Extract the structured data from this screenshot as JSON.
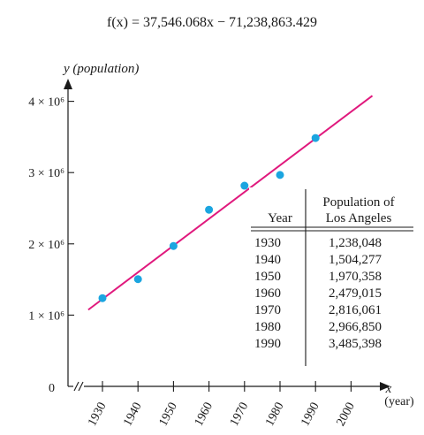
{
  "chart_data": {
    "type": "scatter",
    "title": "f(x) = 37,546.068x − 71,238,863.429",
    "ylabel": "y (population)",
    "xlabel_var": "x",
    "xlabel_unit": "(year)",
    "xlim": [
      1920,
      2010
    ],
    "ylim": [
      0,
      4000000
    ],
    "x_ticks": [
      1930,
      1940,
      1950,
      1960,
      1970,
      1980,
      1990,
      2000
    ],
    "x_tick_labels": [
      "1930",
      "1940",
      "1950",
      "1960",
      "1970",
      "1980",
      "1990",
      "2000"
    ],
    "y_ticks": [
      1000000,
      2000000,
      3000000,
      4000000
    ],
    "y_tick_labels": [
      "1 × 10⁶",
      "2 × 10⁶",
      "3 × 10⁶",
      "4 × 10⁶"
    ],
    "origin_label": "0",
    "series": [
      {
        "x": [
          1930,
          1940,
          1950,
          1960,
          1970,
          1980,
          1990
        ],
        "values": [
          1238048,
          1504277,
          1970358,
          2479015,
          2816061,
          2966850,
          3485398
        ],
        "color": "#1ba5e0"
      }
    ],
    "fit_line": {
      "slope": 37546.068,
      "intercept": -71238863.429,
      "x_range": [
        1926,
        2006
      ],
      "color": "#e0197d"
    },
    "table": {
      "col1_header": "Year",
      "col2_header_line1": "Population of",
      "col2_header_line2": "Los Angeles",
      "rows": [
        [
          "1930",
          "1,238,048"
        ],
        [
          "1940",
          "1,504,277"
        ],
        [
          "1950",
          "1,970,358"
        ],
        [
          "1960",
          "2,479,015"
        ],
        [
          "1970",
          "2,816,061"
        ],
        [
          "1980",
          "2,966,850"
        ],
        [
          "1990",
          "3,485,398"
        ]
      ]
    },
    "grid": false
  }
}
